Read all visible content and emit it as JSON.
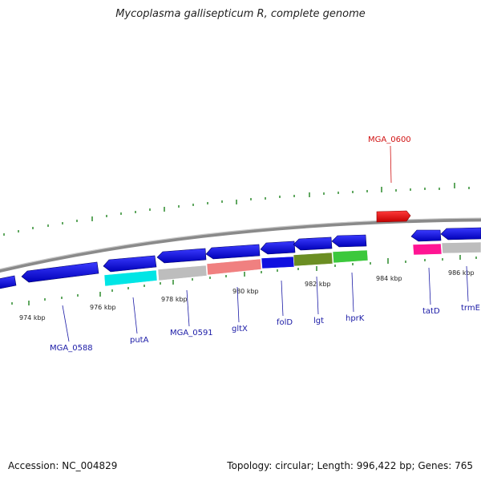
{
  "title": "Mycoplasma gallisepticum R, complete genome",
  "footer": {
    "accession": "Accession: NC_004829",
    "stats": "Topology: circular; Length: 996,422 bp; Genes: 765"
  },
  "ticks": [
    "974 kbp",
    "976 kbp",
    "978 kbp",
    "980 kbp",
    "982 kbp",
    "984 kbp",
    "986 kbp"
  ],
  "gene_labels": [
    "MGA_0600",
    "MGA_0588",
    "putA",
    "MGA_0591",
    "gltX",
    "folD",
    "lgt",
    "hprK",
    "tatD",
    "trmE"
  ],
  "colors": {
    "backbone": "#8a8a8a",
    "forward_gene": "#e81010",
    "reverse_gene": "#1010e0",
    "gc_ticks": "#3a8a3a",
    "label": "#1a1aa6",
    "label_highlight": "#d11212"
  }
}
